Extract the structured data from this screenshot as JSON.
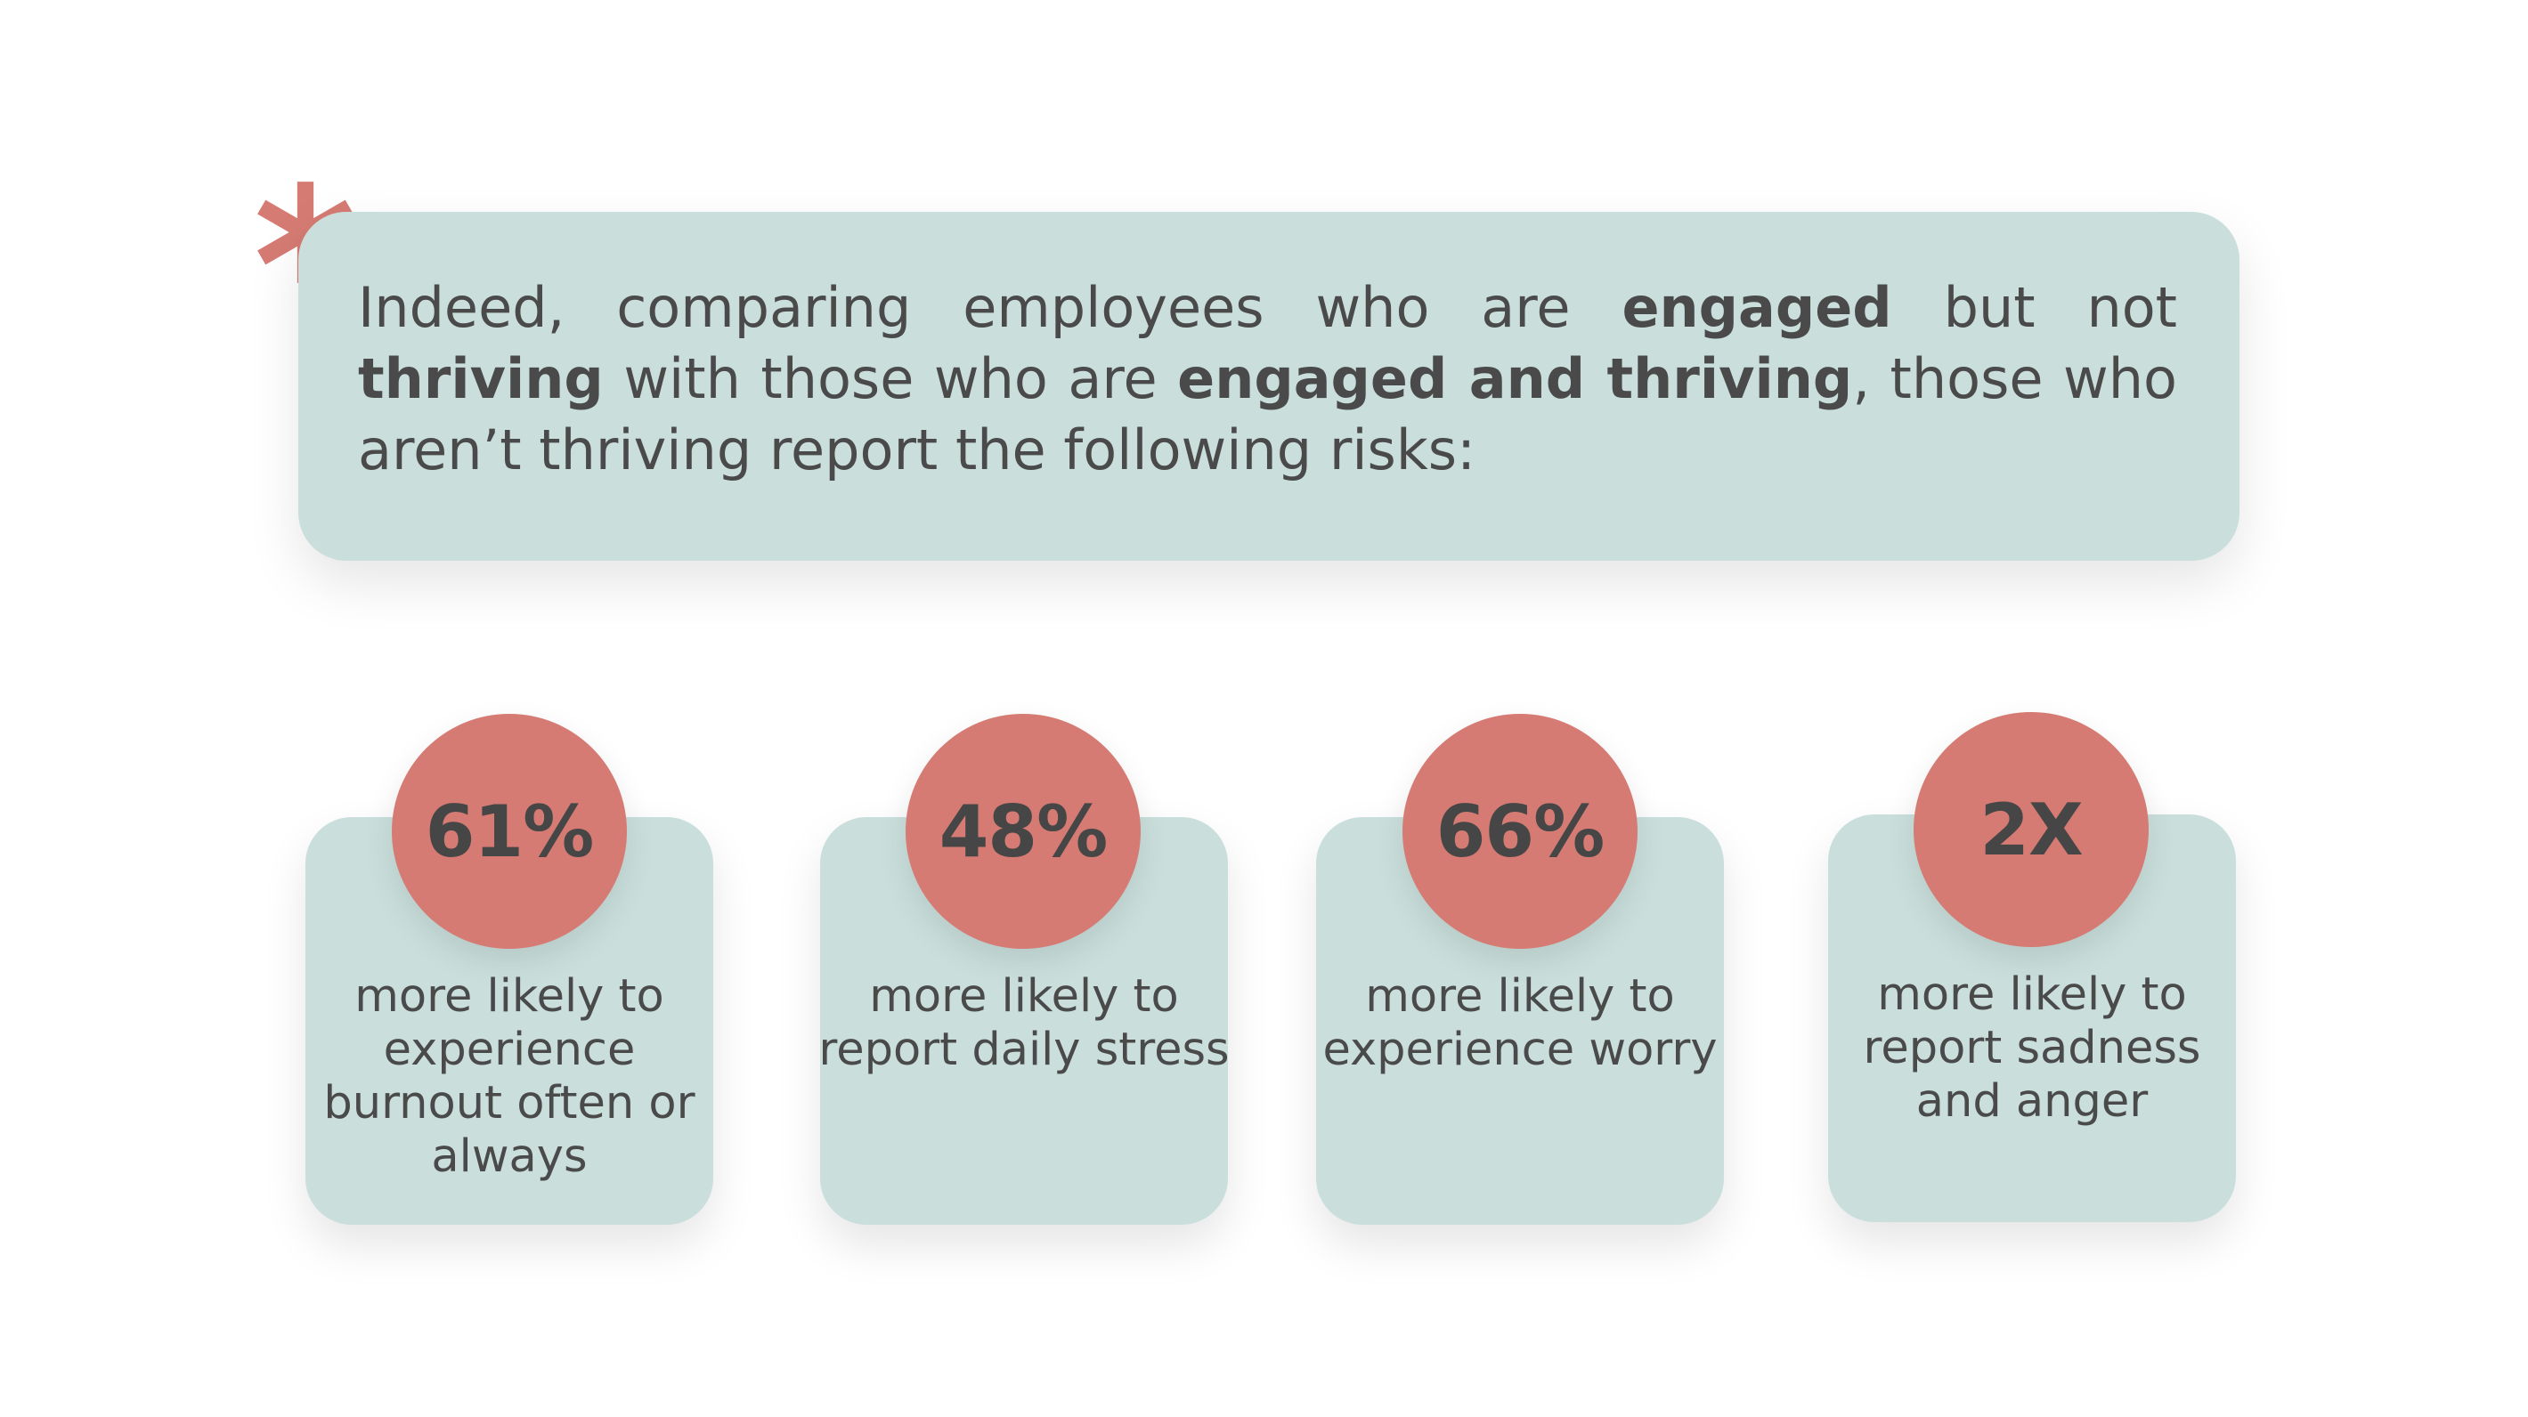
{
  "intro": {
    "p1": "Indeed, comparing employees who are ",
    "b1": "engaged",
    "p2": " but not ",
    "b2": "thriving",
    "p3": " with those who are ",
    "b3": "engaged and thriving",
    "p4": ", those who aren’t thriving report the following risks:"
  },
  "colors": {
    "box": "#cadfdc",
    "accent": "#d57b73",
    "text": "#4a4a4a"
  },
  "decor": {
    "icon": "asterisk-icon"
  },
  "stats": [
    {
      "value": "61%",
      "description": "more likely to experience burnout often or always"
    },
    {
      "value": "48%",
      "description": "more likely to report daily stress"
    },
    {
      "value": "66%",
      "description": "more likely to experience worry"
    },
    {
      "value": "2X",
      "description": "more likely to report sadness and anger"
    }
  ]
}
